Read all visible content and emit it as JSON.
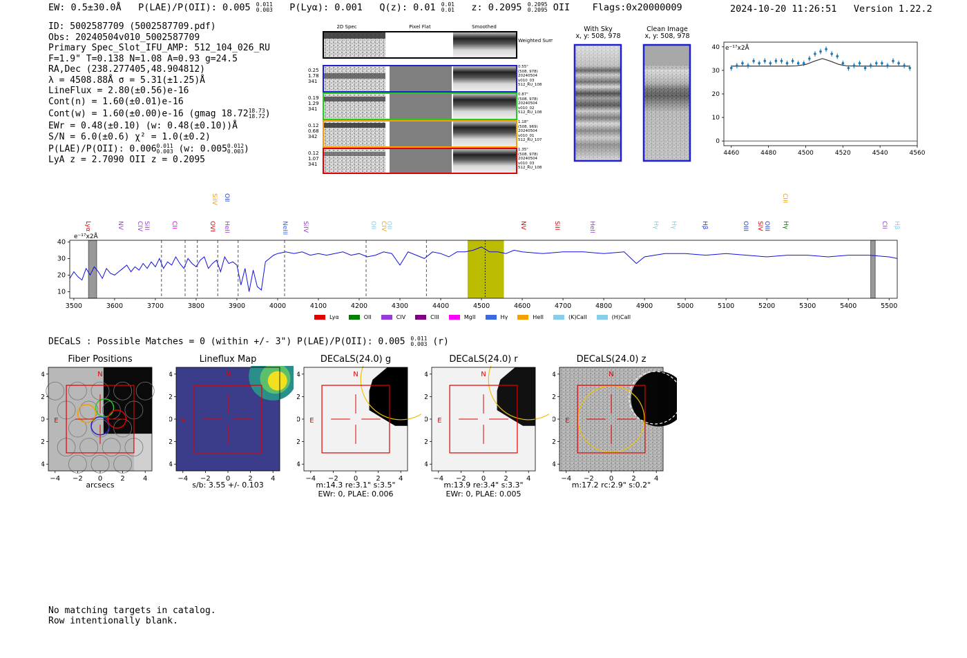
{
  "header": {
    "ew": "EW: 0.5±30.0Å",
    "plae_label": "P(LAE)/P(OII): 0.005",
    "plae_hi": "0.011",
    "plae_lo": "0.003",
    "plya": "P(Lyα): 0.001",
    "qz_label": "Q(z): 0.01",
    "qz_hi": "0.01",
    "qz_lo": "0.01",
    "z_label": "z: 0.2095",
    "z_hi": "0.2095",
    "z_lo": "0.2095",
    "z_line": "OII",
    "flags": "Flags:0x20000009",
    "timestamp": "2024-10-20 11:26:51",
    "version": "Version 1.22.2"
  },
  "info": {
    "id": "ID: 5002587709 (5002587709.pdf)",
    "obs": "Obs: 20240504v010_5002587709",
    "primary": "Primary Spec_Slot_IFU_AMP: 512_104_026_RU",
    "fline": "F=1.9\"  T=0.138  N=1.08  A=0.93  g=24.5",
    "radec": "RA,Dec (238.277405,48.904812)",
    "lambda": "λ = 4508.88Å  σ = 5.31(±1.25)Å",
    "lineflux": "LineFlux = 2.80(±0.56)e-16",
    "contn": "Cont(n) = 1.60(±0.01)e-16",
    "contw_pre": "Cont(w) = 1.60(±0.00)e-16 (gmag 18.72",
    "contw_hi": "18.73",
    "contw_lo": "18.72",
    "contw_post": ")",
    "ewr": "EWr = 0.48(±0.10) (w: 0.48(±0.10))Å",
    "sn": "S/N = 6.0(±0.6)  χ² = 1.0(±0.2)",
    "plae_pre": "P(LAE)/P(OII): 0.006",
    "plae1_hi": "0.011",
    "plae1_lo": "0.003",
    "plae_mid": " (w: 0.005",
    "plae2_hi": "0.012",
    "plae2_lo": "0.003",
    "plae_post": ")",
    "lyaz": "LyA z = 2.7090  OII z = 0.2095"
  },
  "cutouts": {
    "headers": [
      "2D Spec",
      "Pixel Flat",
      "Smoothed"
    ],
    "weighted_sum": "Weighted Sum",
    "rows": [
      {
        "left": [
          "0.25",
          "1.78",
          "341"
        ],
        "right": [
          "0.55\"",
          "(508, 978)",
          "20240504",
          "v010_03",
          "512_RU_108"
        ],
        "color": "#1f1fd0"
      },
      {
        "left": [
          "0.19",
          "1.29",
          "341"
        ],
        "right": [
          "0.87\"",
          "(508, 978)",
          "20240504",
          "v010_02",
          "512_RU_108"
        ],
        "color": "#22cc22"
      },
      {
        "left": [
          "0.12",
          "0.68",
          "342"
        ],
        "right": [
          "1.18\"",
          "(508, 969)",
          "20240504",
          "v010_01",
          "512_RU_107"
        ],
        "color": "#f5a000"
      },
      {
        "left": [
          "0.12",
          "1.07",
          "341"
        ],
        "right": [
          "1.35\"",
          "(508, 978)",
          "20240504",
          "v010_03",
          "512_RU_108"
        ],
        "color": "#e00000"
      }
    ]
  },
  "sky": {
    "with_sky_title": "With Sky",
    "with_sky_coord": "x, y: 508, 978",
    "clean_title": "Clean Image",
    "clean_coord": "x, y: 508, 978"
  },
  "zoom_chart": {
    "unit": "e⁻¹⁷x2Å",
    "x_ticks": [
      "4460",
      "4480",
      "4500",
      "4520",
      "4540",
      "4560"
    ],
    "y_ticks": [
      "0",
      "10",
      "20",
      "30",
      "40"
    ]
  },
  "line_labels": {
    "upper": [
      {
        "name": "SiIV",
        "color": "#f5a000"
      },
      {
        "name": "OII",
        "color": "#1f3fd0"
      },
      {
        "name": "CIII",
        "color": "#f5a000"
      }
    ],
    "lower": [
      {
        "name": "Lyα",
        "color": "#e00000"
      },
      {
        "name": "NV",
        "color": "#9a3ad8"
      },
      {
        "name": "CIV",
        "color": "#9a3ad8"
      },
      {
        "name": "SiII",
        "color": "#9a3ad8"
      },
      {
        "name": "CII",
        "color": "#e000e0"
      },
      {
        "name": "OVI",
        "color": "#e00000"
      },
      {
        "name": "HeII",
        "color": "#9a3ad8"
      },
      {
        "name": "NeIII",
        "color": "#3a6ae0"
      },
      {
        "name": "SiIV",
        "color": "#9a3ad8"
      },
      {
        "name": "OII",
        "color": "#87ceeb"
      },
      {
        "name": "CIV",
        "color": "#f5a000"
      },
      {
        "name": "OII",
        "color": "#87ceeb"
      },
      {
        "name": "NV",
        "color": "#e00000"
      },
      {
        "name": "SiII",
        "color": "#e00000"
      },
      {
        "name": "HeII",
        "color": "#9a3ad8"
      },
      {
        "name": "Hγ",
        "color": "#87ceeb"
      },
      {
        "name": "Hγ",
        "color": "#87ceeb"
      },
      {
        "name": "Hβ",
        "color": "#1f3fd0"
      },
      {
        "name": "OIII",
        "color": "#1f3fd0"
      },
      {
        "name": "SIV",
        "color": "#e00000"
      },
      {
        "name": "OIII",
        "color": "#1f3fd0"
      },
      {
        "name": "Hγ",
        "color": "#008000"
      },
      {
        "name": "CII",
        "color": "#9a3ad8"
      },
      {
        "name": "Hβ",
        "color": "#87ceeb"
      }
    ]
  },
  "spectrum": {
    "unit": "e⁻¹⁷x2Å",
    "x_ticks": [
      "3500",
      "3600",
      "3700",
      "3800",
      "3900",
      "4000",
      "4100",
      "4200",
      "4300",
      "4400",
      "4500",
      "4600",
      "4700",
      "4800",
      "4900",
      "5000",
      "5100",
      "5200",
      "5300",
      "5400",
      "5500"
    ],
    "y_ticks": [
      "10",
      "20",
      "30",
      "40"
    ]
  },
  "legend": [
    {
      "label": "Lyα",
      "color": "#e00000"
    },
    {
      "label": "OII",
      "color": "#008000"
    },
    {
      "label": "CIV",
      "color": "#9a3ad8"
    },
    {
      "label": "CIII",
      "color": "#800080"
    },
    {
      "label": "MgII",
      "color": "#ff00ff"
    },
    {
      "label": "Hγ",
      "color": "#3a6ae0"
    },
    {
      "label": "HeII",
      "color": "#f5a000"
    },
    {
      "label": "(K)CaII",
      "color": "#87ceeb"
    },
    {
      "label": "(H)CaII",
      "color": "#87ceeb"
    }
  ],
  "decals": {
    "text": "DECaLS : Possible Matches = 0 (within +/- 3\")  P(LAE)/P(OII): 0.005",
    "hi": "0.011",
    "lo": "0.003",
    "band": "(r)"
  },
  "panels": [
    {
      "title": "Fiber Positions",
      "cap1": "arcsecs",
      "cap2": ""
    },
    {
      "title": "Lineflux Map",
      "cap1": "s/b: 3.55 +/- 0.103",
      "cap2": ""
    },
    {
      "title": "DECaLS(24.0) g",
      "cap1": "m:14.3  re:3.1\"  s:3.5\"",
      "cap2": "EWr: 0, PLAE: 0.006"
    },
    {
      "title": "DECaLS(24.0) r",
      "cap1": "m:13.9  re:3.4\"  s:3.3\"",
      "cap2": "EWr: 0, PLAE: 0.005"
    },
    {
      "title": "DECaLS(24.0) z",
      "cap1": "m:17.2 rc:2.9\"  s:0.2\"",
      "cap2": ""
    }
  ],
  "panel_ticks": [
    "−4",
    "−2",
    "0",
    "2",
    "4"
  ],
  "panel_labels": {
    "north": "N",
    "east": "E"
  },
  "footer": {
    "line1": "No matching targets in catalog.",
    "line2": "Row intentionally blank."
  },
  "chart_data": [
    {
      "type": "line",
      "title": "",
      "xlabel": "",
      "ylabel": "e⁻¹⁷x2Å",
      "xlim": [
        4456,
        4560
      ],
      "ylim": [
        -2,
        42
      ],
      "series": [
        {
          "x": [
            4460,
            4463,
            4466,
            4469,
            4472,
            4475,
            4478,
            4481,
            4484,
            4487,
            4490,
            4493,
            4496,
            4499,
            4502,
            4505,
            4508,
            4511,
            4514,
            4517,
            4520,
            4523,
            4526,
            4529,
            4532,
            4535,
            4538,
            4541,
            4544,
            4547,
            4550,
            4553,
            4556
          ],
          "values": [
            31,
            32,
            33,
            32,
            34,
            33,
            34,
            33,
            34,
            34,
            33,
            34,
            33,
            33,
            35,
            37,
            38,
            39,
            37,
            36,
            33,
            31,
            32,
            33,
            31,
            32,
            33,
            33,
            32,
            34,
            33,
            32,
            31
          ]
        },
        {
          "x": [
            4460,
            4470,
            4480,
            4490,
            4495,
            4500,
            4505,
            4509,
            4513,
            4518,
            4522,
            4530,
            4540,
            4556
          ],
          "values": [
            31.8,
            31.8,
            31.8,
            31.8,
            31.9,
            32.5,
            34,
            35,
            34,
            32.5,
            31.9,
            31.8,
            31.8,
            31.8
          ]
        }
      ]
    },
    {
      "type": "line",
      "title": "",
      "xlabel": "",
      "ylabel": "e⁻¹⁷x2Å",
      "xlim": [
        3490,
        5520
      ],
      "ylim": [
        6,
        41
      ],
      "highlight_band": [
        4466,
        4555
      ],
      "series": [
        {
          "x": [
            3490,
            3500,
            3510,
            3520,
            3530,
            3540,
            3550,
            3560,
            3570,
            3580,
            3590,
            3600,
            3610,
            3620,
            3630,
            3640,
            3650,
            3660,
            3670,
            3680,
            3690,
            3700,
            3710,
            3720,
            3730,
            3740,
            3750,
            3760,
            3770,
            3780,
            3790,
            3800,
            3810,
            3820,
            3830,
            3840,
            3850,
            3860,
            3870,
            3880,
            3890,
            3900,
            3910,
            3920,
            3930,
            3940,
            3950,
            3960,
            3970,
            3980,
            3990,
            4000,
            4020,
            4040,
            4060,
            4080,
            4100,
            4120,
            4140,
            4160,
            4180,
            4200,
            4220,
            4240,
            4260,
            4280,
            4300,
            4320,
            4340,
            4360,
            4380,
            4400,
            4420,
            4440,
            4460,
            4480,
            4500,
            4520,
            4540,
            4560,
            4580,
            4600,
            4650,
            4700,
            4750,
            4800,
            4850,
            4880,
            4900,
            4950,
            5000,
            5050,
            5100,
            5150,
            5200,
            5250,
            5300,
            5350,
            5400,
            5450,
            5500,
            5520
          ],
          "values": [
            18,
            22,
            19,
            17,
            24,
            20,
            25,
            22,
            18,
            24,
            21,
            20,
            22,
            24,
            26,
            22,
            25,
            23,
            27,
            24,
            28,
            25,
            30,
            24,
            28,
            26,
            31,
            27,
            24,
            30,
            27,
            25,
            29,
            31,
            24,
            27,
            29,
            22,
            31,
            27,
            28,
            26,
            14,
            24,
            10,
            23,
            13,
            11,
            28,
            30,
            32,
            33,
            34,
            33,
            34,
            32,
            33,
            32,
            33,
            34,
            32,
            33,
            31,
            32,
            34,
            33,
            26,
            34,
            32,
            30,
            34,
            33,
            31,
            34,
            34,
            35,
            37,
            34,
            34,
            33,
            35,
            34,
            33,
            34,
            34,
            33,
            34,
            27,
            31,
            33,
            33,
            32,
            33,
            32,
            31,
            32,
            32,
            31,
            32,
            32,
            31,
            30
          ]
        }
      ]
    }
  ]
}
